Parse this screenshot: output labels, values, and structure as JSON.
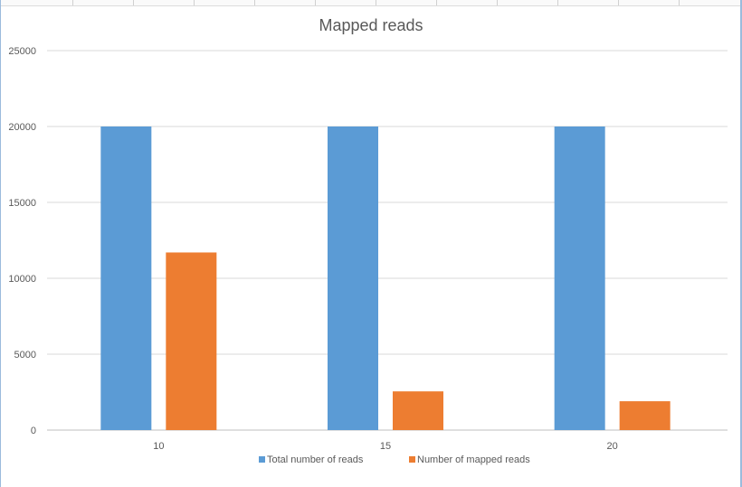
{
  "chart_data": {
    "type": "bar",
    "title": "Mapped reads",
    "xlabel": "",
    "ylabel": "",
    "categories": [
      "10",
      "15",
      "20"
    ],
    "series": [
      {
        "name": "Total number of reads",
        "values": [
          20000,
          20000,
          20000
        ],
        "color": "#5b9bd5"
      },
      {
        "name": "Number of mapped reads",
        "values": [
          11700,
          2550,
          1900
        ],
        "color": "#ed7d31"
      }
    ],
    "ylim": [
      0,
      25000
    ],
    "yticks": [
      "0",
      "5000",
      "10000",
      "15000",
      "20000",
      "25000"
    ],
    "grid": true,
    "legend_position": "bottom",
    "gridline_color": "#d9d9d9"
  }
}
